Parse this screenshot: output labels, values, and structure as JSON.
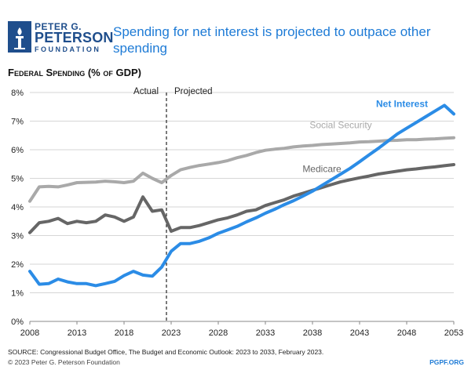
{
  "header": {
    "logo_line1": "PETER G.",
    "logo_line2": "PETERSON",
    "logo_line3": "FOUNDATION",
    "title": "Spending for net interest is projected to outpace other spending"
  },
  "subtitle": "Federal Spending (% of GDP)",
  "footer": {
    "source": "SOURCE: Congressional Budget Office, The Budget and Economic Outlook: 2023 to 2033, February 2023.",
    "copyright": "© 2023 Peter G. Peterson Foundation",
    "site": "PGPF.ORG"
  },
  "colors": {
    "title": "#1e7bd6",
    "net_interest": "#2b8ce6",
    "social_security": "#a9a9a9",
    "medicare": "#666666",
    "logo": "#1f4e8c"
  },
  "chart_data": {
    "type": "line",
    "xlim": [
      2008,
      2053
    ],
    "ylim": [
      0,
      8
    ],
    "x_ticks": [
      "2008",
      "2013",
      "2018",
      "2023",
      "2028",
      "2033",
      "2038",
      "2043",
      "2048",
      "2053"
    ],
    "y_ticks": [
      "0%",
      "1%",
      "2%",
      "3%",
      "4%",
      "5%",
      "6%",
      "7%",
      "8%"
    ],
    "divider_year": 2022.5,
    "divider_labels": {
      "left": "Actual",
      "right": "Projected"
    },
    "series": [
      {
        "name": "Social Security",
        "key": "social_security",
        "x": [
          2008,
          2009,
          2010,
          2011,
          2012,
          2013,
          2014,
          2015,
          2016,
          2017,
          2018,
          2019,
          2020,
          2021,
          2022,
          2023,
          2024,
          2025,
          2026,
          2027,
          2028,
          2029,
          2030,
          2031,
          2032,
          2033,
          2034,
          2035,
          2036,
          2037,
          2038,
          2039,
          2040,
          2041,
          2042,
          2043,
          2044,
          2045,
          2046,
          2047,
          2048,
          2049,
          2050,
          2051,
          2052,
          2053
        ],
        "y": [
          4.2,
          4.7,
          4.72,
          4.7,
          4.77,
          4.85,
          4.86,
          4.87,
          4.9,
          4.88,
          4.85,
          4.9,
          5.18,
          5.0,
          4.85,
          5.1,
          5.3,
          5.38,
          5.45,
          5.5,
          5.55,
          5.62,
          5.72,
          5.8,
          5.9,
          5.98,
          6.02,
          6.05,
          6.1,
          6.13,
          6.15,
          6.18,
          6.2,
          6.22,
          6.24,
          6.27,
          6.28,
          6.3,
          6.32,
          6.33,
          6.35,
          6.35,
          6.37,
          6.38,
          6.4,
          6.42
        ]
      },
      {
        "name": "Medicare",
        "key": "medicare",
        "x": [
          2008,
          2009,
          2010,
          2011,
          2012,
          2013,
          2014,
          2015,
          2016,
          2017,
          2018,
          2019,
          2020,
          2021,
          2022,
          2023,
          2024,
          2025,
          2026,
          2027,
          2028,
          2029,
          2030,
          2031,
          2032,
          2033,
          2034,
          2035,
          2036,
          2037,
          2038,
          2039,
          2040,
          2041,
          2042,
          2043,
          2044,
          2045,
          2046,
          2047,
          2048,
          2049,
          2050,
          2051,
          2052,
          2053
        ],
        "y": [
          3.1,
          3.45,
          3.5,
          3.6,
          3.42,
          3.5,
          3.45,
          3.5,
          3.72,
          3.65,
          3.5,
          3.65,
          4.35,
          3.85,
          3.9,
          3.15,
          3.28,
          3.28,
          3.35,
          3.45,
          3.55,
          3.62,
          3.72,
          3.85,
          3.9,
          4.05,
          4.15,
          4.25,
          4.38,
          4.48,
          4.58,
          4.68,
          4.78,
          4.88,
          4.95,
          5.02,
          5.08,
          5.15,
          5.2,
          5.25,
          5.3,
          5.33,
          5.37,
          5.4,
          5.44,
          5.48
        ]
      },
      {
        "name": "Net Interest",
        "key": "net_interest",
        "x": [
          2008,
          2009,
          2010,
          2011,
          2012,
          2013,
          2014,
          2015,
          2016,
          2017,
          2018,
          2019,
          2020,
          2021,
          2022,
          2023,
          2024,
          2025,
          2026,
          2027,
          2028,
          2029,
          2030,
          2031,
          2032,
          2033,
          2034,
          2035,
          2036,
          2037,
          2038,
          2039,
          2040,
          2041,
          2042,
          2043,
          2044,
          2045,
          2046,
          2047,
          2048,
          2049,
          2050,
          2051,
          2052,
          2053
        ],
        "y": [
          1.75,
          1.3,
          1.32,
          1.48,
          1.38,
          1.32,
          1.32,
          1.25,
          1.32,
          1.4,
          1.6,
          1.75,
          1.62,
          1.58,
          1.9,
          2.45,
          2.72,
          2.72,
          2.8,
          2.92,
          3.08,
          3.2,
          3.32,
          3.48,
          3.62,
          3.78,
          3.92,
          4.08,
          4.22,
          4.38,
          4.55,
          4.75,
          4.95,
          5.15,
          5.35,
          5.58,
          5.82,
          6.05,
          6.3,
          6.55,
          6.75,
          6.95,
          7.15,
          7.35,
          7.55,
          7.25
        ]
      }
    ],
    "series_labels_placement": "inline",
    "grid": "horizontal"
  }
}
